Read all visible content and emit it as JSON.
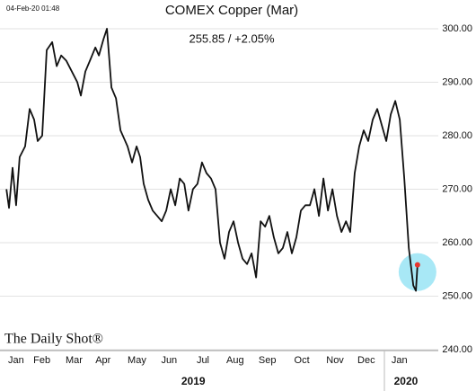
{
  "chart_data": {
    "type": "line",
    "title": "COMEX Copper (Mar)",
    "timestamp": "04-Feb-20 01:48",
    "annotation": "255.85  /  +2.05%",
    "watermark": "The Daily Shot®",
    "grid": true,
    "highlight_last": true,
    "highlight_color": "#e8362e",
    "halo_color": "#a8e8f6",
    "xlim": [
      0,
      13.8
    ],
    "ylim": [
      240,
      301
    ],
    "yticks": [
      {
        "value": 240,
        "label": "240.00"
      },
      {
        "value": 250,
        "label": "250.00"
      },
      {
        "value": 260,
        "label": "260.00"
      },
      {
        "value": 270,
        "label": "270.00"
      },
      {
        "value": 280,
        "label": "280.00"
      },
      {
        "value": 290,
        "label": "290.00"
      },
      {
        "value": 300,
        "label": "300.00"
      }
    ],
    "xticks": [
      {
        "value": 0.5,
        "label": "Jan"
      },
      {
        "value": 1.3,
        "label": "Feb"
      },
      {
        "value": 2.3,
        "label": "Mar"
      },
      {
        "value": 3.2,
        "label": "Apr"
      },
      {
        "value": 4.25,
        "label": "May"
      },
      {
        "value": 5.25,
        "label": "Jun"
      },
      {
        "value": 6.3,
        "label": "Jul"
      },
      {
        "value": 7.3,
        "label": "Aug"
      },
      {
        "value": 8.3,
        "label": "Sep"
      },
      {
        "value": 9.37,
        "label": "Oct"
      },
      {
        "value": 10.4,
        "label": "Nov"
      },
      {
        "value": 11.37,
        "label": "Dec"
      },
      {
        "value": 12.4,
        "label": "Jan"
      }
    ],
    "year_labels": [
      {
        "value": 6.0,
        "label": "2019"
      },
      {
        "value": 12.6,
        "label": "2020"
      }
    ],
    "x": [
      0.2,
      0.28,
      0.39,
      0.5,
      0.61,
      0.78,
      0.92,
      1.06,
      1.17,
      1.31,
      1.45,
      1.62,
      1.76,
      1.9,
      2.06,
      2.23,
      2.4,
      2.51,
      2.65,
      2.79,
      2.96,
      3.07,
      3.21,
      3.32,
      3.46,
      3.6,
      3.74,
      3.85,
      3.96,
      4.1,
      4.24,
      4.35,
      4.46,
      4.6,
      4.74,
      4.88,
      5.02,
      5.16,
      5.3,
      5.44,
      5.58,
      5.72,
      5.85,
      5.99,
      6.13,
      6.27,
      6.41,
      6.55,
      6.69,
      6.83,
      6.97,
      7.11,
      7.25,
      7.39,
      7.53,
      7.67,
      7.81,
      7.95,
      8.09,
      8.23,
      8.36,
      8.5,
      8.64,
      8.78,
      8.92,
      9.06,
      9.2,
      9.34,
      9.48,
      9.62,
      9.76,
      9.9,
      10.04,
      10.18,
      10.32,
      10.46,
      10.6,
      10.74,
      10.87,
      11.01,
      11.15,
      11.29,
      11.43,
      11.57,
      11.71,
      11.85,
      11.99,
      12.13,
      12.27,
      12.41,
      12.55,
      12.69,
      12.83,
      12.91,
      12.96
    ],
    "series": [
      {
        "color": "#111111",
        "values": [
          270,
          266.5,
          274,
          267,
          276,
          278,
          285,
          283,
          279,
          280,
          296,
          297.5,
          293,
          295,
          294,
          292,
          290,
          287.5,
          292,
          294,
          296.5,
          295,
          298,
          300,
          289,
          287,
          281,
          279.5,
          278,
          275,
          278,
          276,
          271,
          268,
          266,
          265,
          264,
          266,
          270,
          267,
          272,
          271,
          266,
          270,
          271,
          275,
          273,
          272,
          270,
          260,
          257,
          262,
          264,
          260,
          257,
          256,
          258,
          253.5,
          264,
          263,
          265,
          261,
          258,
          259,
          262,
          258,
          261,
          266,
          267,
          267,
          270,
          265,
          272,
          266,
          270,
          265,
          262,
          264,
          262,
          273,
          278,
          281,
          279,
          283,
          285,
          282,
          279,
          284,
          286.5,
          283,
          272,
          259,
          252,
          251,
          255.85
        ]
      }
    ]
  }
}
